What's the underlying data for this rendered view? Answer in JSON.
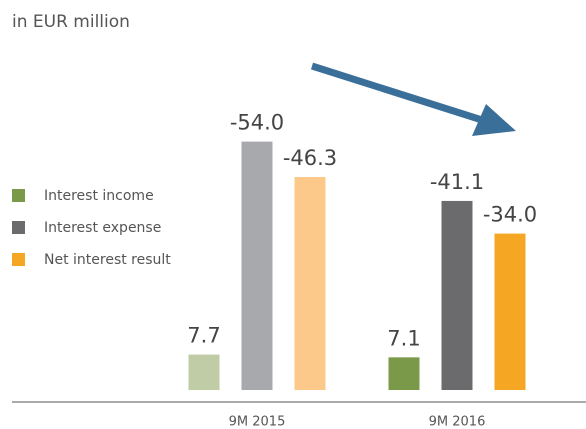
{
  "chart_data": {
    "type": "bar",
    "subtitle": "in EUR million",
    "categories": [
      "9M 2015",
      "9M 2016"
    ],
    "series": [
      {
        "name": "Interest income",
        "color": "#7a9a4a",
        "colors": [
          "#c0cca6",
          "#7a9a4a"
        ],
        "values": [
          7.7,
          7.1
        ],
        "value_labels": [
          "7.7",
          "7.1"
        ]
      },
      {
        "name": "Interest expense",
        "color": "#6b6b6e",
        "colors": [
          "#a8a9ac",
          "#6b6b6e"
        ],
        "values": [
          -54.0,
          -41.1
        ],
        "value_labels": [
          "-54.0",
          "-41.1"
        ]
      },
      {
        "name": "Net interest result",
        "color": "#f5a623",
        "colors": [
          "#fcc98a",
          "#f5a623"
        ],
        "values": [
          -46.3,
          -34.0
        ],
        "value_labels": [
          "-46.3",
          "-34.0"
        ]
      }
    ],
    "legend": "left"
  }
}
